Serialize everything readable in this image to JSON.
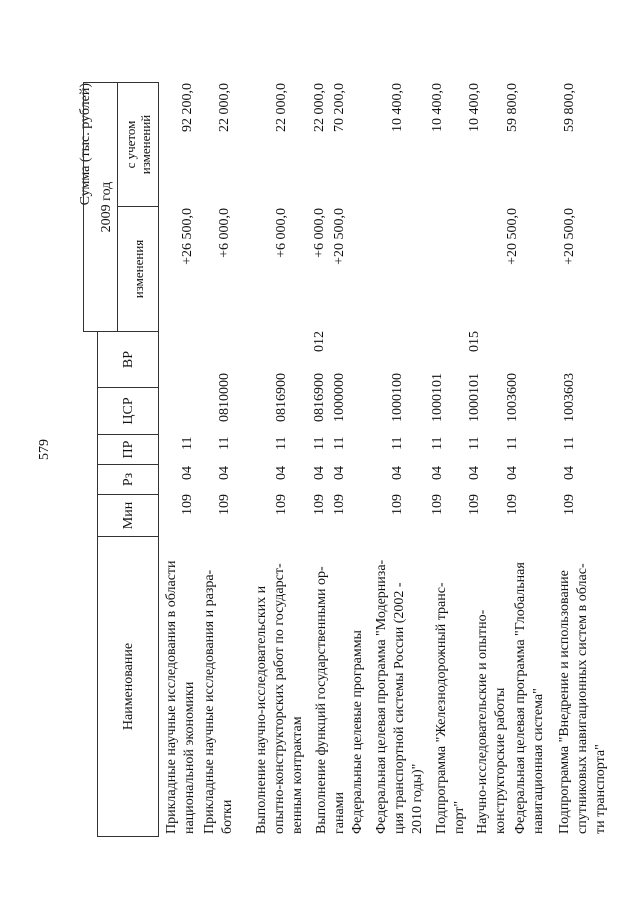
{
  "page_number": "579",
  "units_caption": "Сумма (тыс. рублей)",
  "header": {
    "name": "Наименование",
    "min": "Мин",
    "rz": "Рз",
    "pr": "ПР",
    "csr": "ЦСР",
    "vr": "ВР",
    "year": "2009 год",
    "changes": "изменения",
    "with_changes": [
      "с учетом",
      "изменений"
    ]
  },
  "rows": [
    {
      "name": [
        "Прикладные научные исследования в области",
        "национальной экономики"
      ],
      "min": "109",
      "rz": "04",
      "pr": "11",
      "csr": "",
      "vr": "",
      "changes": "+26 500,0",
      "total": "92 200,0"
    },
    {
      "name": [
        "Прикладные научные исследования и разра-",
        "ботки"
      ],
      "min": "109",
      "rz": "04",
      "pr": "11",
      "csr": "0810000",
      "vr": "",
      "changes": "+6 000,0",
      "total": "22 000,0"
    },
    {
      "name": [
        "Выполнение научно-исследовательских и",
        "опытно-конструкторских работ по государст-",
        "венным контрактам"
      ],
      "min": "109",
      "rz": "04",
      "pr": "11",
      "csr": "0816900",
      "vr": "",
      "changes": "+6 000,0",
      "total": "22 000,0"
    },
    {
      "name": [
        "Выполнение функций государственными ор-",
        "ганами"
      ],
      "min": "109",
      "rz": "04",
      "pr": "11",
      "csr": "0816900",
      "vr": "012",
      "changes": "+6 000,0",
      "total": "22 000,0"
    },
    {
      "name": [
        "Федеральные целевые программы"
      ],
      "min": "109",
      "rz": "04",
      "pr": "11",
      "csr": "1000000",
      "vr": "",
      "changes": "+20 500,0",
      "total": "70 200,0"
    },
    {
      "name": [
        "Федеральная целевая программа \"Модерниза-",
        "ция транспортной системы России (2002 -",
        "2010 годы)\""
      ],
      "min": "109",
      "rz": "04",
      "pr": "11",
      "csr": "1000100",
      "vr": "",
      "changes": "",
      "total": "10 400,0"
    },
    {
      "name": [
        "Подпрограмма \"Железнодорожный транс-",
        "порт\""
      ],
      "min": "109",
      "rz": "04",
      "pr": "11",
      "csr": "1000101",
      "vr": "",
      "changes": "",
      "total": "10 400,0"
    },
    {
      "name": [
        "Научно-исследовательские и опытно-",
        "конструкторские работы"
      ],
      "min": "109",
      "rz": "04",
      "pr": "11",
      "csr": "1000101",
      "vr": "015",
      "changes": "",
      "total": "10 400,0"
    },
    {
      "name": [
        "Федеральная целевая программа \"Глобальная",
        "навигационная система\""
      ],
      "min": "109",
      "rz": "04",
      "pr": "11",
      "csr": "1003600",
      "vr": "",
      "changes": "+20 500,0",
      "total": "59 800,0"
    },
    {
      "name": [
        "Подпрограмма \"Внедрение и использование",
        "спутниковых навигационных систем в облас-",
        "ти транспорта\""
      ],
      "min": "109",
      "rz": "04",
      "pr": "11",
      "csr": "1003603",
      "vr": "",
      "changes": "+20 500,0",
      "total": "59 800,0"
    }
  ]
}
